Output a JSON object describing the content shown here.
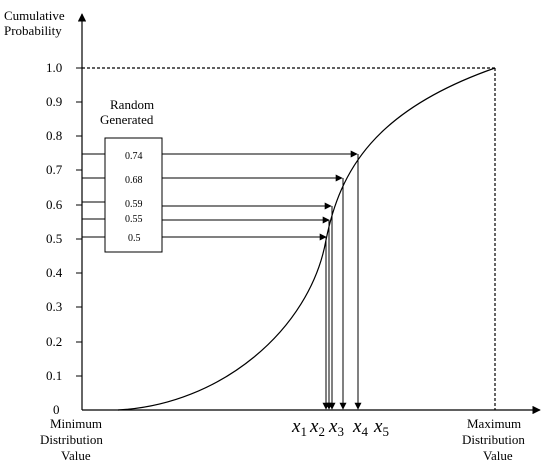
{
  "y_axis_title": [
    "Cumulative",
    "Probability"
  ],
  "y_ticks": [
    "1.0",
    "0.9",
    "0.8",
    "0.7",
    "0.6",
    "0.5",
    "0.4",
    "0.3",
    "0.2",
    "0.1",
    "0"
  ],
  "min_label": [
    "Minimum",
    "Distribution",
    "Value"
  ],
  "max_label": [
    "Maximum",
    "Distribution",
    "Value"
  ],
  "box_title": [
    "Random",
    "Generated"
  ],
  "random_values": [
    "0.74",
    "0.68",
    "0.59",
    "0.55",
    "0.5"
  ],
  "x_labels": [
    {
      "base": "x",
      "sub": "1"
    },
    {
      "base": "x",
      "sub": "2"
    },
    {
      "base": "x",
      "sub": "3"
    },
    {
      "base": "x",
      "sub": "4"
    },
    {
      "base": "x",
      "sub": "5"
    }
  ]
}
